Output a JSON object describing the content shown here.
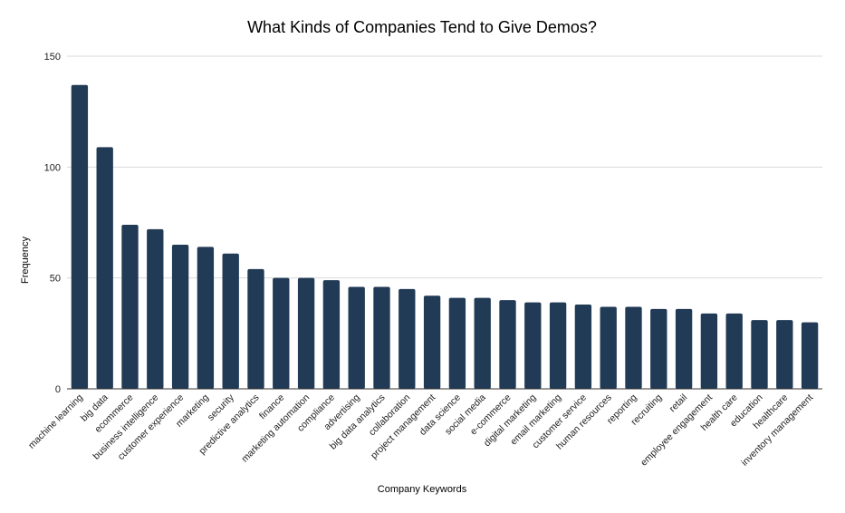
{
  "chart_data": {
    "type": "bar",
    "title": "What Kinds of Companies Tend to Give Demos?",
    "xlabel": "Company Keywords",
    "ylabel": "Frequency",
    "ylim": [
      0,
      150
    ],
    "yticks": [
      0,
      50,
      100,
      150
    ],
    "grid": true,
    "bar_color": "#213a55",
    "categories": [
      "machine learning",
      "big data",
      "ecommerce",
      "business intelligence",
      "customer experience",
      "marketing",
      "security",
      "predictive analytics",
      "finance",
      "marketing automation",
      "compliance",
      "advertising",
      "big data analytics",
      "collaboration",
      "project management",
      "data science",
      "social media",
      "e-commerce",
      "digital marketing",
      "email marketing",
      "customer service",
      "human resources",
      "reporting",
      "recruiting",
      "retail",
      "employee engagement",
      "health care",
      "education",
      "healthcare",
      "inventory management"
    ],
    "values": [
      137,
      109,
      74,
      72,
      65,
      64,
      61,
      54,
      50,
      50,
      49,
      46,
      46,
      45,
      42,
      41,
      41,
      40,
      39,
      39,
      38,
      37,
      37,
      36,
      36,
      34,
      34,
      31,
      31,
      30
    ]
  }
}
